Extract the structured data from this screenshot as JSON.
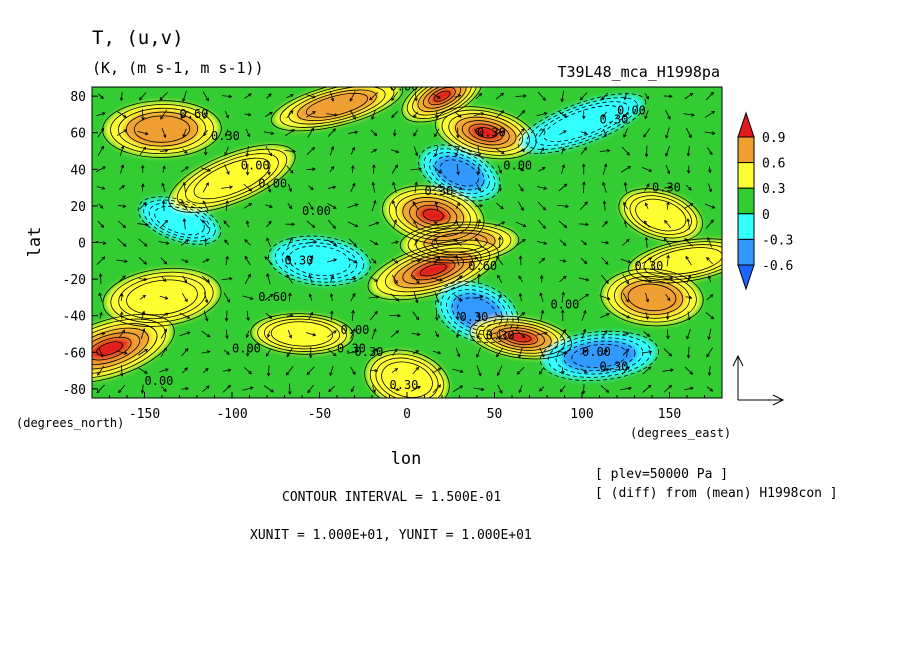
{
  "chart_data": {
    "type": "heatmap",
    "title": "T, (u,v)",
    "subtitle": "(K, (m s-1, m s-1))",
    "experiment": "T39L48_mca_H1998pa",
    "xlabel": "lon",
    "ylabel": "lat",
    "x_unit_label": "(degrees_east)",
    "y_unit_label": "(degrees_north)",
    "xlim": [
      -180,
      180
    ],
    "ylim": [
      -85,
      85
    ],
    "x_ticks": [
      -150,
      -100,
      -50,
      0,
      50,
      100,
      150
    ],
    "y_ticks": [
      -80,
      -60,
      -40,
      -20,
      0,
      20,
      40,
      60,
      80
    ],
    "x_tick_labels": [
      "-150",
      "-100",
      "-50",
      "0",
      "50",
      "100",
      "150"
    ],
    "y_tick_labels": [
      "-80",
      "-60",
      "-40",
      "-20",
      "0",
      "20",
      "40",
      "60",
      "80"
    ],
    "colorbar": {
      "levels": [
        "0.9",
        "0.6",
        "0.3",
        "0",
        "-0.3",
        "-0.6"
      ],
      "colors": [
        "#e31a1c",
        "#f0a030",
        "#ffff33",
        "#33cc33",
        "#33ffff",
        "#3399ff",
        "#1a66ff"
      ]
    },
    "contour_labels": [
      "0.00",
      "0.60",
      "0.30",
      "0.30",
      "0.00",
      "0.00",
      "0.30",
      "0.00",
      "0.00",
      "0.30",
      "0.60",
      "0.00",
      "0.30",
      "0.30",
      "0.00",
      "0.00",
      "0.30",
      "0.30",
      "0.30",
      "0.00",
      "0.30",
      "0.30",
      "0.00",
      "0.60",
      "0.30",
      "0.30",
      "0.00"
    ],
    "anomaly_centers": [
      {
        "lon": 20,
        "lat": 80,
        "value": 0.9
      },
      {
        "lon": 45,
        "lat": 60,
        "value": 0.9
      },
      {
        "lon": -140,
        "lat": 62,
        "value": 0.6
      },
      {
        "lon": -40,
        "lat": 75,
        "value": 0.6
      },
      {
        "lon": 30,
        "lat": 38,
        "value": -0.6
      },
      {
        "lon": 15,
        "lat": 15,
        "value": 0.9
      },
      {
        "lon": 30,
        "lat": 0,
        "value": 0.6
      },
      {
        "lon": 15,
        "lat": -15,
        "value": 0.9
      },
      {
        "lon": 40,
        "lat": -38,
        "value": -0.6
      },
      {
        "lon": 65,
        "lat": -52,
        "value": 0.9
      },
      {
        "lon": 110,
        "lat": -62,
        "value": -0.6
      },
      {
        "lon": -170,
        "lat": -58,
        "value": 0.9
      },
      {
        "lon": -130,
        "lat": 12,
        "value": -0.3
      },
      {
        "lon": -50,
        "lat": -10,
        "value": -0.3
      },
      {
        "lon": -140,
        "lat": -30,
        "value": 0.3
      },
      {
        "lon": 100,
        "lat": 65,
        "value": -0.3
      },
      {
        "lon": 145,
        "lat": 15,
        "value": 0.3
      },
      {
        "lon": 140,
        "lat": -30,
        "value": 0.6
      },
      {
        "lon": 160,
        "lat": -10,
        "value": 0.3
      },
      {
        "lon": -100,
        "lat": 35,
        "value": 0.3
      },
      {
        "lon": 0,
        "lat": -75,
        "value": 0.3
      },
      {
        "lon": -60,
        "lat": -50,
        "value": 0.3
      }
    ],
    "vector_reference": {
      "xunit": 10,
      "yunit": 10
    },
    "grid": false
  },
  "footer": {
    "contour_interval": "CONTOUR INTERVAL = 1.500E-01",
    "units": "XUNIT = 1.000E+01, YUNIT = 1.000E+01",
    "plev": "[ plev=50000 Pa ]",
    "diff": "[ (diff) from (mean) H1998con ]"
  }
}
